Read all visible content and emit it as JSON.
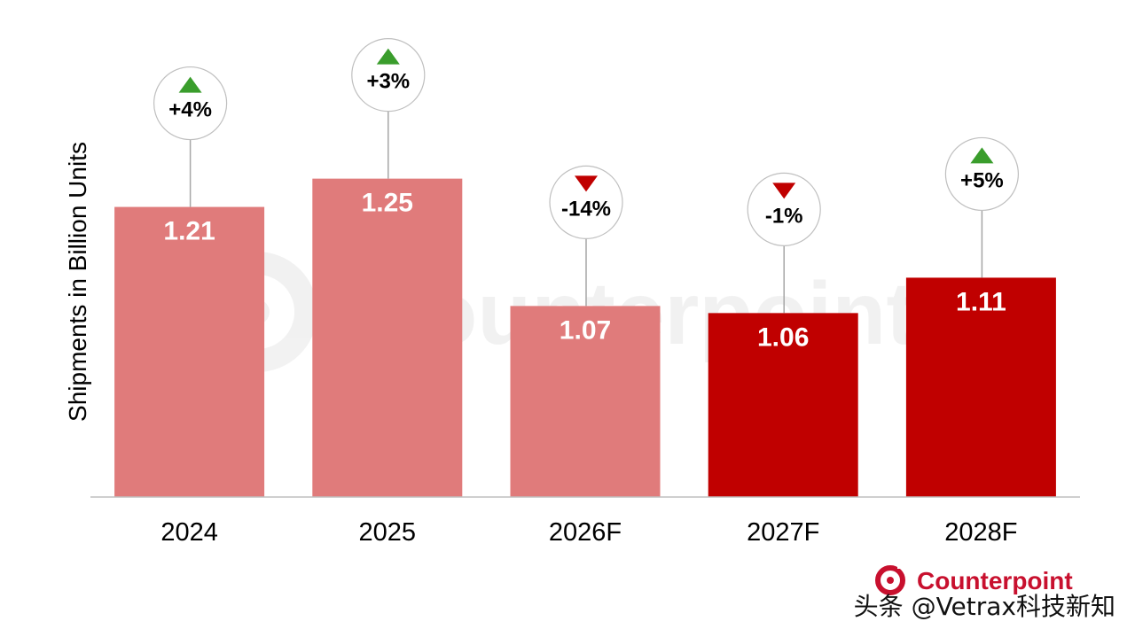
{
  "chart_data": {
    "type": "bar",
    "ylabel": "Shipments in Billion Units",
    "xlabel": "",
    "categories": [
      "2024",
      "2025",
      "2026F",
      "2027F",
      "2028F"
    ],
    "values": [
      1.21,
      1.25,
      1.07,
      1.06,
      1.11
    ],
    "value_labels": [
      "1.21",
      "1.25",
      "1.07",
      "1.06",
      "1.11"
    ],
    "yoy_change": [
      "+4%",
      "+3%",
      "-14%",
      "-1%",
      "+5%"
    ],
    "yoy_direction": [
      "up",
      "up",
      "down",
      "down",
      "up"
    ],
    "ylim": [
      0.8,
      1.4
    ],
    "grid": false,
    "legend": "none",
    "colors": {
      "actual_light": "#e07b7b",
      "forecast_dark": "#c00000",
      "up_arrow": "#3a9d2c",
      "down_arrow": "#c00000"
    },
    "bar_color_keys": [
      "actual_light",
      "actual_light",
      "actual_light",
      "forecast_dark",
      "forecast_dark"
    ]
  },
  "watermark": {
    "text": "Counterpoint"
  },
  "brand": {
    "logo_text": "Counterpoint",
    "logo_color": "#c8102e",
    "logo_icon": "counterpoint-logo-icon"
  },
  "credit": {
    "text": "头条 @Vetrax科技新知"
  }
}
